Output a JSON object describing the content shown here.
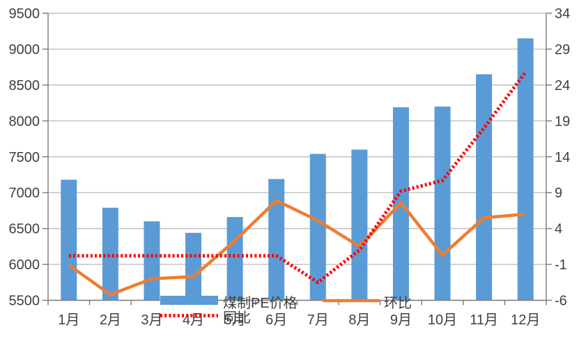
{
  "chart_data": {
    "type": "bar",
    "subtype": "combo-bar-line",
    "title": "",
    "categories": [
      "1月",
      "2月",
      "3月",
      "4月",
      "5月",
      "6月",
      "7月",
      "8月",
      "9月",
      "10月",
      "11月",
      "12月"
    ],
    "series": [
      {
        "name": "煤制PE价格",
        "type": "bar",
        "axis": "left",
        "color": "#5B9BD5",
        "style": "solid",
        "values": [
          7180,
          6790,
          6600,
          6440,
          6660,
          7190,
          7540,
          7600,
          8190,
          8200,
          8650,
          9150
        ]
      },
      {
        "name": "环比",
        "type": "line",
        "axis": "right",
        "color": "#ED7D31",
        "style": "solid",
        "values": [
          -1.1,
          -5.2,
          -3.0,
          -2.7,
          2.3,
          7.9,
          5.1,
          1.5,
          7.6,
          0.3,
          5.5,
          6.0
        ]
      },
      {
        "name": "同比",
        "type": "line",
        "axis": "right",
        "color": "#FF0000",
        "style": "dotted",
        "values": [
          0.2,
          0.2,
          0.2,
          0.2,
          0.2,
          0.2,
          -3.5,
          1.0,
          9.2,
          10.7,
          18.0,
          25.8
        ]
      }
    ],
    "left_axis": {
      "min": 5500,
      "max": 9500,
      "step": 500,
      "ticks": [
        "5500",
        "6000",
        "6500",
        "7000",
        "7500",
        "8000",
        "8500",
        "9000",
        "9500"
      ]
    },
    "right_axis": {
      "min": -6,
      "max": 34,
      "step": 5,
      "ticks": [
        "-6",
        "-1",
        "4",
        "9",
        "14",
        "19",
        "24",
        "29",
        "34"
      ]
    },
    "grid": true,
    "legend_position": "bottom-inside-overlapping-axis-labels",
    "colors": {
      "bar": "#5B9BD5",
      "mom_line": "#ED7D31",
      "yoy_line": "#FF0000",
      "gridline": "#bfbfbf",
      "axis_line": "#808080",
      "text": "#3f3f3f",
      "background": "#ffffff"
    }
  }
}
